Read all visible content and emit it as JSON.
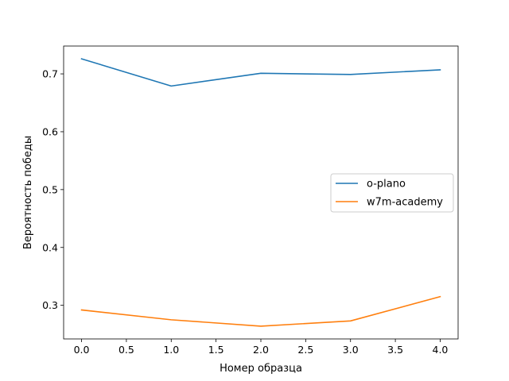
{
  "chart_data": {
    "type": "line",
    "title": "",
    "xlabel": "Номер образца",
    "ylabel": "Вероятность победы",
    "x": [
      0,
      1,
      2,
      3,
      4
    ],
    "series": [
      {
        "name": "o-plano",
        "color": "#1f77b4",
        "values": [
          0.726,
          0.679,
          0.701,
          0.699,
          0.707
        ]
      },
      {
        "name": "w7m-academy",
        "color": "#ff7f0e",
        "values": [
          0.292,
          0.275,
          0.264,
          0.273,
          0.315
        ]
      }
    ],
    "xlim": [
      -0.2,
      4.2
    ],
    "ylim": [
      0.2419,
      0.7481
    ],
    "xticks": [
      0.0,
      0.5,
      1.0,
      1.5,
      2.0,
      2.5,
      3.0,
      3.5,
      4.0
    ],
    "xtick_labels": [
      "0.0",
      "0.5",
      "1.0",
      "1.5",
      "2.0",
      "2.5",
      "3.0",
      "3.5",
      "4.0"
    ],
    "yticks": [
      0.3,
      0.4,
      0.5,
      0.6,
      0.7
    ],
    "ytick_labels": [
      "0.3",
      "0.4",
      "0.5",
      "0.6",
      "0.7"
    ],
    "grid": false,
    "legend_position": "center-right"
  }
}
